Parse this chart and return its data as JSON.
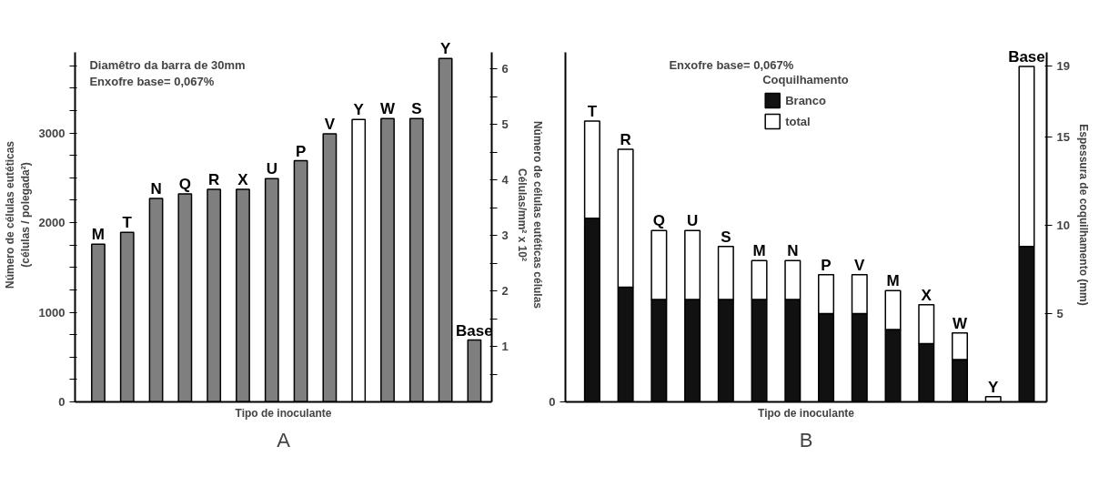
{
  "chart_data": [
    {
      "type": "bar",
      "title": "A",
      "xlabel": "Tipo de inoculante",
      "ylabel": "Número de células eutéticas\n(células / polegada²)",
      "y2label": "Número de células eutéticas células\nCélulas/mm² x 10²",
      "categories": [
        "M",
        "T",
        "N",
        "Q",
        "R",
        "X",
        "U",
        "P",
        "V",
        "Y",
        "W",
        "S",
        "Y",
        "Base"
      ],
      "values": [
        1760,
        1890,
        2270,
        2320,
        2370,
        2370,
        2490,
        2690,
        2990,
        3150,
        3160,
        3160,
        3830,
        690
      ],
      "colors": [
        "#7f7f7f",
        "#7f7f7f",
        "#7f7f7f",
        "#7f7f7f",
        "#7f7f7f",
        "#7f7f7f",
        "#7f7f7f",
        "#7f7f7f",
        "#7f7f7f",
        "#ffffff",
        "#7f7f7f",
        "#7f7f7f",
        "#7f7f7f",
        "#7f7f7f"
      ],
      "ylim": [
        0,
        3900
      ],
      "yticks": [
        0,
        {
          "value": 250,
          "label": null
        },
        {
          "value": 500,
          "label": null
        },
        {
          "value": 750,
          "label": null
        },
        1000,
        {
          "value": 1250,
          "label": null
        },
        {
          "value": 1500,
          "label": null
        },
        {
          "value": 1750,
          "label": null
        },
        2000,
        {
          "value": 2250,
          "label": null
        },
        {
          "value": 2500,
          "label": null
        },
        {
          "value": 2750,
          "label": null
        },
        3000,
        {
          "value": 3250,
          "label": null
        },
        {
          "value": 3500,
          "label": null
        },
        {
          "value": 3750,
          "label": null
        }
      ],
      "y2lim": [
        0,
        6.3
      ],
      "y2ticks": [
        {
          "value": 0.5,
          "label": null
        },
        1,
        {
          "value": 1.5,
          "label": null
        },
        2,
        {
          "value": 2.5,
          "label": null
        },
        3,
        {
          "value": 3.5,
          "label": null
        },
        4,
        {
          "value": 4.5,
          "label": null
        },
        5,
        {
          "value": 5.5,
          "label": null
        },
        6
      ],
      "annotations": [
        "Diamêtro da barra de 30mm",
        "Enxofre base= 0,067%"
      ]
    },
    {
      "type": "bar",
      "title": "B",
      "xlabel": "Tipo de inoculante",
      "y2label": "Espessura de coquilhamento (mm)",
      "stacked": true,
      "categories": [
        "T",
        "R",
        "Q",
        "U",
        "S",
        "M",
        "N",
        "P",
        "V",
        "M",
        "X",
        "W",
        "Y",
        "Base"
      ],
      "series": [
        {
          "name": "Branco",
          "color": "#111111",
          "axis": "y2",
          "values": [
            10.4,
            6.5,
            5.8,
            5.8,
            5.8,
            5.8,
            5.8,
            5.0,
            5.0,
            4.1,
            3.3,
            2.4,
            0,
            8.8
          ]
        },
        {
          "name": "total",
          "color": "#ffffff",
          "axis": "y2",
          "values": [
            5.5,
            7.8,
            3.9,
            3.9,
            3.0,
            2.2,
            2.2,
            2.2,
            2.2,
            2.2,
            2.2,
            1.5,
            0.3,
            10.2
          ]
        }
      ],
      "y2lim": [
        0,
        19.8
      ],
      "y2ticks": [
        5,
        10,
        15,
        19
      ],
      "legend": "top",
      "legend_title": "Coquilhamento",
      "annotations": [
        "Enxofre base= 0,067%",
        "0"
      ]
    }
  ]
}
